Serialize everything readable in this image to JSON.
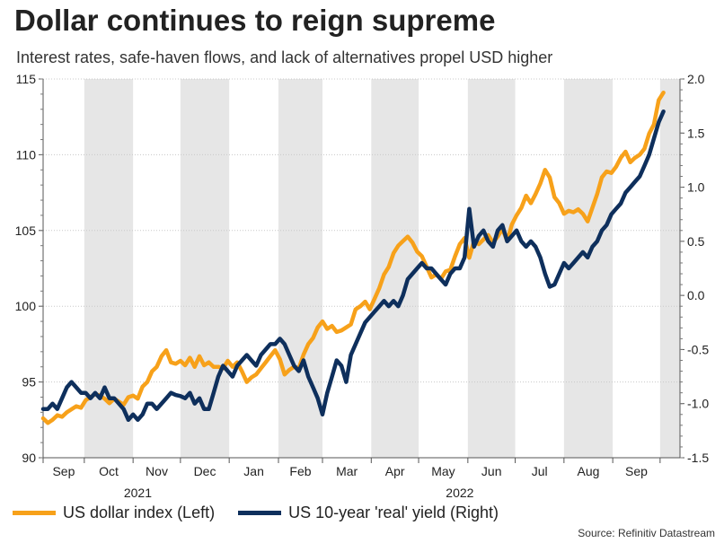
{
  "header": {
    "title": "Dollar continues to reign supreme",
    "subtitle": "Interest rates, safe-haven flows, and lack of alternatives propel USD higher"
  },
  "legend": {
    "left_series": "US dollar index (Left)",
    "right_series": "US 10-year 'real' yield (Right)"
  },
  "source": "Source: Refinitiv Datastream",
  "colors": {
    "dxy": "#f7a11a",
    "real_yield": "#0e2f5c",
    "shade": "#e6e6e6",
    "grid": "#c8c8c8"
  },
  "chart_data": {
    "type": "line",
    "title": "Dollar continues to reign supreme",
    "x_unit": "months since 2021-08-20",
    "x_range": [
      0,
      13.45
    ],
    "months": [
      {
        "label": "Sep",
        "start": 0.0,
        "end": 0.87
      },
      {
        "label": "Oct",
        "start": 0.87,
        "end": 1.9
      },
      {
        "label": "Nov",
        "start": 1.9,
        "end": 2.9
      },
      {
        "label": "Dec",
        "start": 2.9,
        "end": 3.93
      },
      {
        "label": "Jan",
        "start": 3.93,
        "end": 4.97
      },
      {
        "label": "Feb",
        "start": 4.97,
        "end": 5.9
      },
      {
        "label": "Mar",
        "start": 5.9,
        "end": 6.93
      },
      {
        "label": "Apr",
        "start": 6.93,
        "end": 7.93
      },
      {
        "label": "May",
        "start": 7.93,
        "end": 8.97
      },
      {
        "label": "Jun",
        "start": 8.97,
        "end": 9.97
      },
      {
        "label": "Jul",
        "start": 9.97,
        "end": 11.0
      },
      {
        "label": "Aug",
        "start": 11.0,
        "end": 12.03
      },
      {
        "label": "Sep",
        "start": 12.03,
        "end": 13.03
      }
    ],
    "years": [
      {
        "label": "2021",
        "x": 2.0
      },
      {
        "label": "2022",
        "x": 8.8
      }
    ],
    "y_left": {
      "label": "",
      "range": [
        90,
        115
      ],
      "ticks": [
        "115",
        "110",
        "105",
        "100",
        "95",
        "90"
      ]
    },
    "y_right": {
      "label": "",
      "range": [
        -1.5,
        2.0
      ],
      "ticks": [
        "2.0",
        "1.5",
        "1.0",
        "0.5",
        "0.0",
        "-0.5",
        "-1.0",
        "-1.5"
      ]
    },
    "grid": true,
    "series": [
      {
        "name": "US dollar index (Left)",
        "axis": "left",
        "x": [
          0.0,
          0.1,
          0.2,
          0.3,
          0.4,
          0.5,
          0.6,
          0.7,
          0.8,
          0.9,
          1.0,
          1.1,
          1.2,
          1.3,
          1.4,
          1.5,
          1.6,
          1.7,
          1.8,
          1.9,
          2.0,
          2.1,
          2.2,
          2.3,
          2.4,
          2.5,
          2.6,
          2.7,
          2.8,
          2.9,
          3.0,
          3.1,
          3.2,
          3.3,
          3.4,
          3.5,
          3.6,
          3.7,
          3.8,
          3.9,
          4.0,
          4.1,
          4.2,
          4.3,
          4.4,
          4.5,
          4.6,
          4.7,
          4.8,
          4.9,
          5.0,
          5.1,
          5.2,
          5.3,
          5.4,
          5.5,
          5.6,
          5.7,
          5.8,
          5.9,
          6.0,
          6.1,
          6.2,
          6.3,
          6.4,
          6.5,
          6.6,
          6.7,
          6.8,
          6.9,
          7.0,
          7.1,
          7.2,
          7.3,
          7.4,
          7.5,
          7.6,
          7.7,
          7.8,
          7.9,
          8.0,
          8.1,
          8.2,
          8.3,
          8.4,
          8.5,
          8.6,
          8.7,
          8.8,
          8.9,
          9.0,
          9.1,
          9.2,
          9.3,
          9.4,
          9.5,
          9.6,
          9.7,
          9.8,
          9.9,
          10.0,
          10.1,
          10.2,
          10.3,
          10.4,
          10.5,
          10.6,
          10.7,
          10.8,
          10.9,
          11.0,
          11.1,
          11.2,
          11.3,
          11.4,
          11.5,
          11.6,
          11.7,
          11.8,
          11.9,
          12.0,
          12.1,
          12.2,
          12.3,
          12.4,
          12.5,
          12.6,
          12.7,
          12.8,
          12.9,
          13.0,
          13.1
        ],
        "values": [
          92.6,
          92.3,
          92.5,
          92.8,
          92.7,
          93.0,
          93.2,
          93.4,
          93.3,
          93.8,
          94.0,
          94.2,
          94.1,
          93.9,
          93.6,
          93.9,
          93.7,
          93.5,
          94.0,
          94.1,
          93.9,
          94.7,
          95.0,
          95.7,
          96.0,
          96.7,
          97.1,
          96.3,
          96.2,
          96.4,
          96.1,
          96.6,
          96.0,
          96.7,
          96.1,
          96.3,
          96.0,
          96.0,
          95.9,
          96.4,
          96.0,
          96.3,
          95.7,
          95.0,
          95.3,
          95.5,
          95.9,
          96.3,
          96.7,
          97.1,
          96.5,
          95.5,
          95.8,
          96.0,
          95.9,
          96.8,
          97.5,
          97.9,
          98.6,
          99.0,
          98.5,
          98.7,
          98.3,
          98.4,
          98.6,
          98.8,
          99.8,
          100.0,
          100.3,
          99.8,
          100.5,
          101.2,
          102.1,
          102.6,
          103.5,
          104.0,
          104.3,
          104.6,
          104.2,
          103.6,
          103.3,
          102.6,
          101.9,
          102.1,
          101.8,
          102.3,
          102.4,
          103.3,
          104.1,
          104.5,
          103.2,
          104.3,
          104.1,
          104.4,
          104.7,
          104.2,
          104.6,
          105.1,
          104.3,
          105.4,
          106.0,
          106.5,
          107.3,
          106.8,
          107.4,
          108.1,
          109.0,
          108.5,
          107.2,
          106.8,
          106.1,
          106.3,
          106.2,
          106.4,
          106.1,
          105.6,
          106.5,
          107.4,
          108.5,
          108.9,
          108.8,
          109.2,
          109.8,
          110.2,
          109.5,
          109.8,
          110.0,
          110.4,
          111.4,
          112.0,
          113.6,
          114.1
        ]
      },
      {
        "name": "US 10-year 'real' yield (Right)",
        "axis": "right",
        "x": [
          0.0,
          0.1,
          0.2,
          0.3,
          0.4,
          0.5,
          0.6,
          0.7,
          0.8,
          0.9,
          1.0,
          1.1,
          1.2,
          1.3,
          1.4,
          1.5,
          1.6,
          1.7,
          1.8,
          1.9,
          2.0,
          2.1,
          2.2,
          2.3,
          2.4,
          2.5,
          2.6,
          2.7,
          2.8,
          2.9,
          3.0,
          3.1,
          3.2,
          3.3,
          3.4,
          3.5,
          3.6,
          3.7,
          3.8,
          3.9,
          4.0,
          4.1,
          4.2,
          4.3,
          4.4,
          4.5,
          4.6,
          4.7,
          4.8,
          4.9,
          5.0,
          5.1,
          5.2,
          5.3,
          5.4,
          5.5,
          5.6,
          5.7,
          5.8,
          5.9,
          6.0,
          6.1,
          6.2,
          6.3,
          6.4,
          6.5,
          6.6,
          6.7,
          6.8,
          6.9,
          7.0,
          7.1,
          7.2,
          7.3,
          7.4,
          7.5,
          7.6,
          7.7,
          7.8,
          7.9,
          8.0,
          8.1,
          8.2,
          8.3,
          8.4,
          8.5,
          8.6,
          8.7,
          8.8,
          8.9,
          9.0,
          9.1,
          9.2,
          9.3,
          9.4,
          9.5,
          9.6,
          9.7,
          9.8,
          9.9,
          10.0,
          10.1,
          10.2,
          10.3,
          10.4,
          10.5,
          10.6,
          10.7,
          10.8,
          10.9,
          11.0,
          11.1,
          11.2,
          11.3,
          11.4,
          11.5,
          11.6,
          11.7,
          11.8,
          11.9,
          12.0,
          12.1,
          12.2,
          12.3,
          12.4,
          12.5,
          12.6,
          12.7,
          12.8,
          12.9,
          13.0,
          13.1
        ],
        "values": [
          -1.05,
          -1.05,
          -1.0,
          -1.05,
          -0.95,
          -0.85,
          -0.8,
          -0.85,
          -0.9,
          -0.9,
          -0.95,
          -0.9,
          -0.95,
          -0.85,
          -0.95,
          -0.95,
          -1.0,
          -1.05,
          -1.15,
          -1.1,
          -1.15,
          -1.1,
          -1.0,
          -1.0,
          -1.05,
          -1.0,
          -0.95,
          -0.9,
          -0.92,
          -0.93,
          -0.95,
          -0.9,
          -1.0,
          -0.95,
          -1.05,
          -1.05,
          -0.9,
          -0.75,
          -0.65,
          -0.7,
          -0.75,
          -0.65,
          -0.6,
          -0.55,
          -0.6,
          -0.65,
          -0.55,
          -0.5,
          -0.45,
          -0.45,
          -0.4,
          -0.45,
          -0.55,
          -0.65,
          -0.7,
          -0.6,
          -0.75,
          -0.85,
          -0.95,
          -1.1,
          -0.9,
          -0.75,
          -0.6,
          -0.65,
          -0.8,
          -0.55,
          -0.45,
          -0.35,
          -0.25,
          -0.2,
          -0.15,
          -0.1,
          -0.05,
          -0.1,
          -0.05,
          -0.1,
          0.0,
          0.15,
          0.2,
          0.25,
          0.3,
          0.25,
          0.25,
          0.2,
          0.15,
          0.1,
          0.2,
          0.25,
          0.25,
          0.35,
          0.8,
          0.45,
          0.55,
          0.6,
          0.5,
          0.45,
          0.6,
          0.65,
          0.5,
          0.55,
          0.6,
          0.5,
          0.45,
          0.5,
          0.45,
          0.35,
          0.2,
          0.08,
          0.1,
          0.2,
          0.3,
          0.25,
          0.3,
          0.35,
          0.4,
          0.35,
          0.45,
          0.5,
          0.6,
          0.65,
          0.75,
          0.8,
          0.85,
          0.95,
          1.0,
          1.05,
          1.1,
          1.2,
          1.3,
          1.45,
          1.6,
          1.7
        ]
      }
    ]
  }
}
